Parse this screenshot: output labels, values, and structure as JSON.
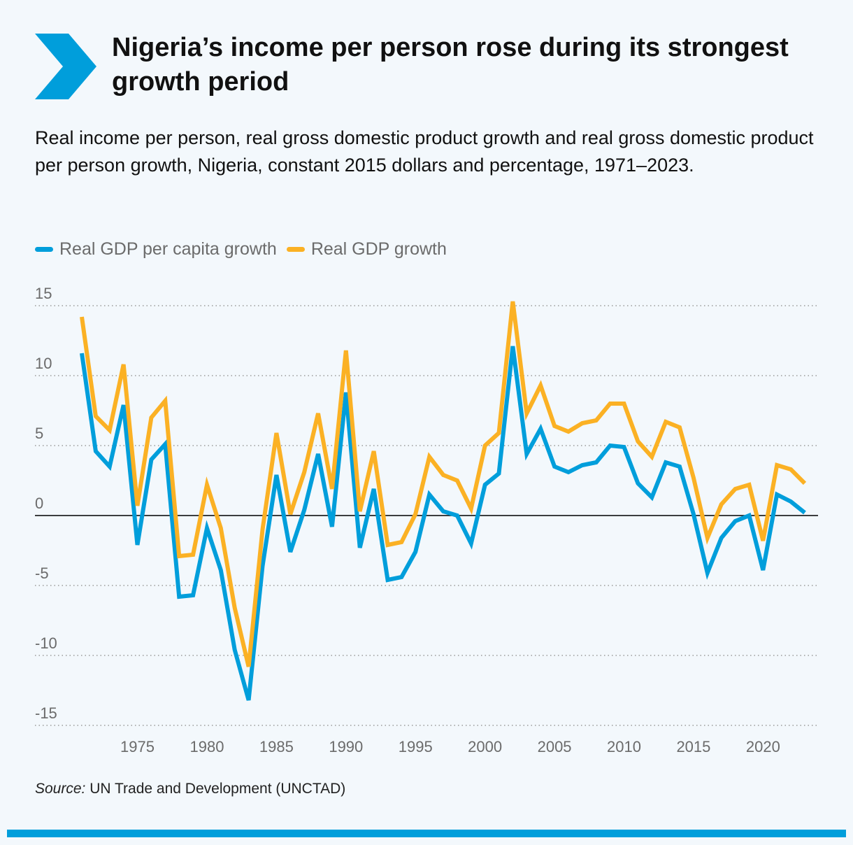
{
  "header": {
    "title": "Nigeria’s income per person rose during its strongest growth period",
    "subtitle": "Real income per person, real gross domestic product growth and real gross domestic product per person growth, Nigeria, constant 2015 dollars and percentage, 1971–2023.",
    "chevron_color": "#009edb"
  },
  "source": {
    "label": "Source:",
    "text": "UN Trade and Development (UNCTAD)"
  },
  "colors": {
    "per_capita": "#009edb",
    "gdp": "#fbb124",
    "grid": "#9a9a9a",
    "zero_line": "#000000",
    "tick_text": "#6b6b6b",
    "bottom_bar": "#009edb"
  },
  "chart_data": {
    "type": "line",
    "title": "",
    "xlabel": "",
    "ylabel": "",
    "ylim": [
      -15,
      15
    ],
    "yticks": [
      15,
      10,
      5,
      0,
      -5,
      -10,
      -15
    ],
    "xlim": [
      1971,
      2023
    ],
    "xticks": [
      1975,
      1980,
      1985,
      1990,
      1995,
      2000,
      2005,
      2010,
      2015,
      2020
    ],
    "legend_position": "top-left",
    "grid": "horizontal-dotted",
    "x": [
      1971,
      1972,
      1973,
      1974,
      1975,
      1976,
      1977,
      1978,
      1979,
      1980,
      1981,
      1982,
      1983,
      1984,
      1985,
      1986,
      1987,
      1988,
      1989,
      1990,
      1991,
      1992,
      1993,
      1994,
      1995,
      1996,
      1997,
      1998,
      1999,
      2000,
      2001,
      2002,
      2003,
      2004,
      2005,
      2006,
      2007,
      2008,
      2009,
      2010,
      2011,
      2012,
      2013,
      2014,
      2015,
      2016,
      2017,
      2018,
      2019,
      2020,
      2021,
      2022,
      2023
    ],
    "series": [
      {
        "name": "Real GDP per capita growth",
        "color": "#009edb",
        "values": [
          11.6,
          4.6,
          3.5,
          7.9,
          -2.1,
          4.0,
          5.1,
          -5.8,
          -5.7,
          -0.9,
          -3.9,
          -9.6,
          -13.2,
          -3.6,
          2.9,
          -2.6,
          0.4,
          4.4,
          -0.8,
          8.8,
          -2.3,
          1.9,
          -4.6,
          -4.4,
          -2.6,
          1.5,
          0.3,
          0.0,
          -2.0,
          2.2,
          3.0,
          12.1,
          4.4,
          6.2,
          3.5,
          3.1,
          3.6,
          3.8,
          5.0,
          4.9,
          2.3,
          1.3,
          3.8,
          3.5,
          0.1,
          -4.1,
          -1.6,
          -0.4,
          0.0,
          -3.9,
          1.5,
          1.0,
          0.2
        ]
      },
      {
        "name": "Real GDP growth",
        "color": "#fbb124",
        "values": [
          14.2,
          7.1,
          6.1,
          10.8,
          0.7,
          7.0,
          8.2,
          -2.9,
          -2.8,
          2.2,
          -0.9,
          -6.6,
          -10.8,
          -1.0,
          5.9,
          0.1,
          3.1,
          7.3,
          1.9,
          11.8,
          0.3,
          4.6,
          -2.1,
          -1.9,
          0.1,
          4.2,
          2.9,
          2.5,
          0.5,
          5.0,
          5.9,
          15.3,
          7.3,
          9.3,
          6.4,
          6.0,
          6.6,
          6.8,
          8.0,
          8.0,
          5.3,
          4.2,
          6.7,
          6.3,
          2.7,
          -1.6,
          0.8,
          1.9,
          2.2,
          -1.8,
          3.6,
          3.3,
          2.3
        ]
      }
    ]
  }
}
